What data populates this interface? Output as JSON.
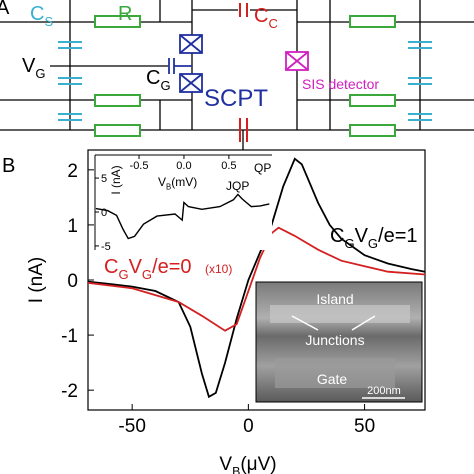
{
  "panel_a": {
    "label": "A",
    "cs_label": [
      "C",
      "S"
    ],
    "r_label": "R",
    "cc_label": [
      "C",
      "C"
    ],
    "vg_label": [
      "V",
      "G"
    ],
    "cg_label": [
      "C",
      "G"
    ],
    "scpt_label": "SCPT",
    "sis_label": "SIS detector"
  },
  "chart_data": {
    "type": "line",
    "panel_label": "B",
    "xlabel": [
      "V",
      "B",
      "(μV)"
    ],
    "ylabel": "I (nA)",
    "xlim": [
      -69,
      76
    ],
    "ylim": [
      -2.36,
      2.36
    ],
    "xticks": [
      -50,
      0,
      50
    ],
    "yticks": [
      -2,
      -1,
      0,
      1,
      2
    ],
    "series": [
      {
        "name": [
          "C",
          "G",
          "V",
          "G",
          "/e=1"
        ],
        "color": "#000000",
        "x": [
          -69,
          -60,
          -50,
          -40,
          -30,
          -25,
          -20,
          -17,
          -14,
          -10,
          -5,
          0,
          5,
          10,
          15,
          20,
          23,
          26,
          30,
          35,
          40,
          50,
          60,
          70,
          76
        ],
        "values": [
          -0.03,
          -0.07,
          -0.12,
          -0.2,
          -0.4,
          -0.85,
          -1.7,
          -2.12,
          -2.05,
          -1.5,
          -0.7,
          0.0,
          0.5,
          1.0,
          1.7,
          2.2,
          2.1,
          1.8,
          1.4,
          1.0,
          0.75,
          0.45,
          0.3,
          0.2,
          0.15
        ]
      },
      {
        "name": [
          "C",
          "G",
          "V",
          "G",
          "/e=0"
        ],
        "color": "#d42020",
        "x": [
          -69,
          -50,
          -30,
          -20,
          -10,
          -5,
          0,
          5,
          10,
          13,
          20,
          30,
          40,
          50,
          60,
          76
        ],
        "values": [
          -0.05,
          -0.15,
          -0.4,
          -0.65,
          -0.92,
          -0.8,
          -0.2,
          0.4,
          0.85,
          0.95,
          0.8,
          0.55,
          0.35,
          0.25,
          0.15,
          0.1
        ]
      }
    ],
    "red_note": "(x10)",
    "inset": {
      "xlabel": [
        "V",
        "B",
        "(mV)"
      ],
      "ylabel": "I (nA)",
      "xlim": [
        -0.99,
        0.98
      ],
      "ylim": [
        -5.6,
        8.4
      ],
      "xticks": [
        -0.5,
        {
          "value": 0,
          "label": "0.0"
        },
        0.5
      ],
      "yticks": [
        -5,
        0,
        5
      ],
      "color": "#000000",
      "x": [
        -0.98,
        -0.85,
        -0.75,
        -0.68,
        -0.62,
        -0.55,
        -0.45,
        -0.3,
        -0.1,
        -0.02,
        0.0,
        0.05,
        0.2,
        0.4,
        0.55,
        0.6,
        0.65,
        0.75,
        0.85,
        0.95
      ],
      "values": [
        0.5,
        0.2,
        -0.5,
        -2.5,
        -3.9,
        -3.6,
        -1.8,
        -0.6,
        -0.3,
        -1.2,
        1.4,
        0.8,
        0.4,
        0.8,
        1.8,
        2.6,
        1.9,
        0.8,
        0.9,
        1.2
      ],
      "jqp_label": "JQP",
      "qp_label": "QP"
    },
    "image_inset": {
      "island": "Island",
      "junctions": "Junctions",
      "gate": "Gate",
      "scale": "200nm"
    }
  }
}
